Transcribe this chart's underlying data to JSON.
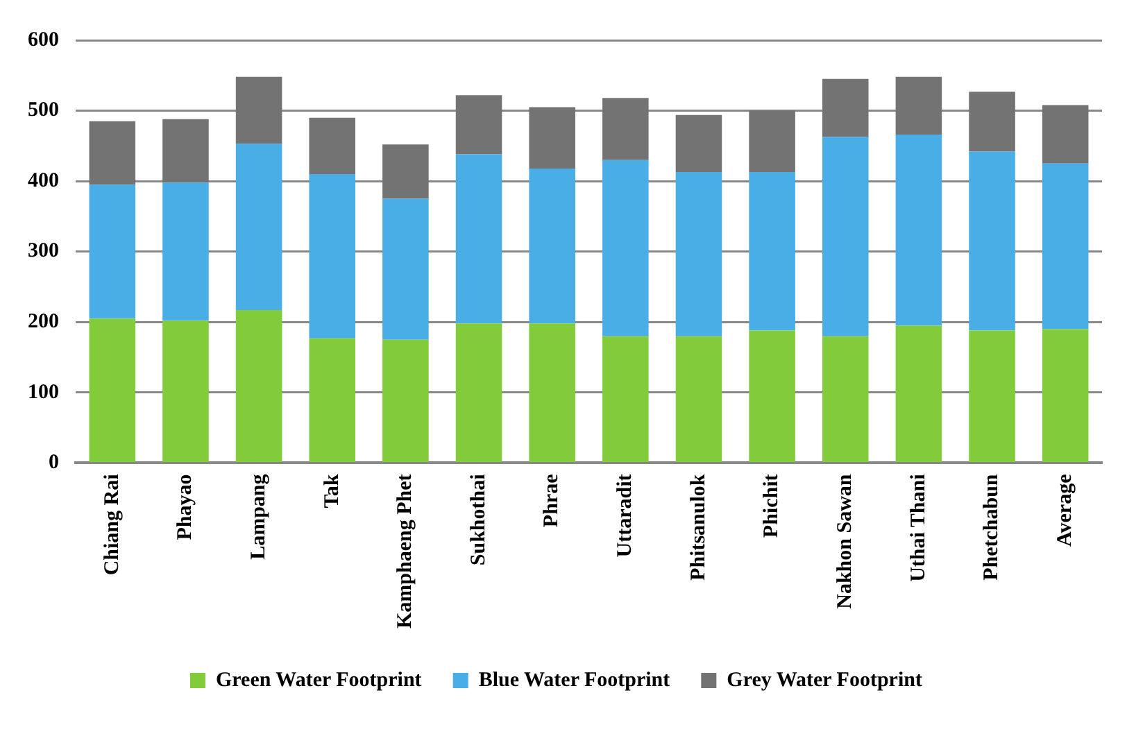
{
  "chart_data": {
    "type": "bar",
    "stacked": true,
    "categories": [
      "Chiang Rai",
      "Phayao",
      "Lampang",
      "Tak",
      "Kamphaeng Phet",
      "Sukhothai",
      "Phrae",
      "Uttaradit",
      "Phitsanulok",
      "Phichit",
      "Nakhon Sawan",
      "Uthai Thani",
      "Phetchabun",
      "Average"
    ],
    "series": [
      {
        "name": "Green Water Footprint",
        "color": "#82cc3c",
        "values": [
          205,
          202,
          217,
          177,
          175,
          198,
          198,
          180,
          180,
          188,
          180,
          195,
          188,
          190
        ]
      },
      {
        "name": "Blue Water Footprint",
        "color": "#4aaee6",
        "values": [
          190,
          196,
          236,
          233,
          200,
          240,
          220,
          250,
          233,
          225,
          283,
          271,
          254,
          235
        ]
      },
      {
        "name": "Grey Water Footprint",
        "color": "#737373",
        "values": [
          90,
          90,
          95,
          80,
          77,
          84,
          87,
          88,
          81,
          87,
          82,
          82,
          85,
          83
        ]
      }
    ],
    "ylim": [
      0,
      600
    ],
    "yticks": [
      0,
      100,
      200,
      300,
      400,
      500,
      600
    ],
    "grid": "y",
    "legend": "bottom"
  }
}
